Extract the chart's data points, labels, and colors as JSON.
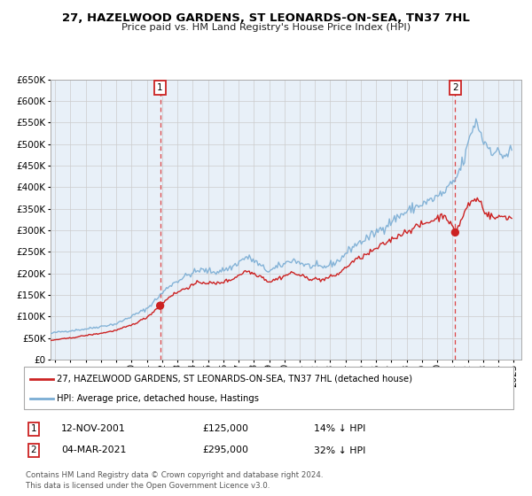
{
  "title": "27, HAZELWOOD GARDENS, ST LEONARDS-ON-SEA, TN37 7HL",
  "subtitle": "Price paid vs. HM Land Registry's House Price Index (HPI)",
  "ylim": [
    0,
    650000
  ],
  "yticks": [
    0,
    50000,
    100000,
    150000,
    200000,
    250000,
    300000,
    350000,
    400000,
    450000,
    500000,
    550000,
    600000,
    650000
  ],
  "xlim_start": 1994.7,
  "xlim_end": 2025.5,
  "xtick_years": [
    1995,
    1996,
    1997,
    1998,
    1999,
    2000,
    2001,
    2002,
    2003,
    2004,
    2005,
    2006,
    2007,
    2008,
    2009,
    2010,
    2011,
    2012,
    2013,
    2014,
    2015,
    2016,
    2017,
    2018,
    2019,
    2020,
    2021,
    2022,
    2023,
    2024,
    2025
  ],
  "hpi_color": "#7aadd4",
  "price_color": "#cc2222",
  "vline_color": "#dd4444",
  "sale1_x": 2001.87,
  "sale1_y": 125000,
  "sale2_x": 2021.17,
  "sale2_y": 295000,
  "legend_label1": "27, HAZELWOOD GARDENS, ST LEONARDS-ON-SEA, TN37 7HL (detached house)",
  "legend_label2": "HPI: Average price, detached house, Hastings",
  "table_row1": [
    "1",
    "12-NOV-2001",
    "£125,000",
    "14% ↓ HPI"
  ],
  "table_row2": [
    "2",
    "04-MAR-2021",
    "£295,000",
    "32% ↓ HPI"
  ],
  "footnote1": "Contains HM Land Registry data © Crown copyright and database right 2024.",
  "footnote2": "This data is licensed under the Open Government Licence v3.0.",
  "bg_color": "#ffffff",
  "grid_color": "#cccccc",
  "plot_bg_color": "#e8f0f8"
}
